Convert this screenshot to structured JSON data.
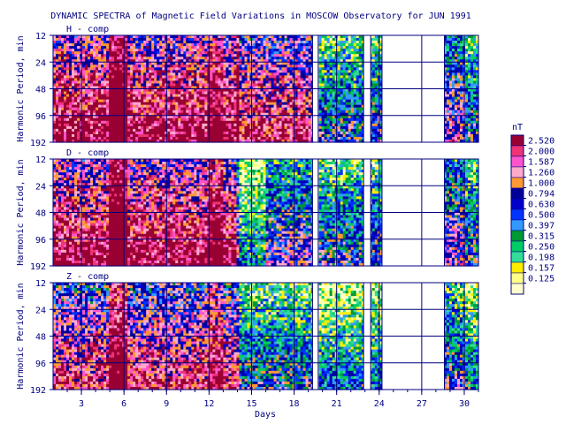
{
  "chart_data": {
    "type": "heatmap",
    "title": "DYNAMIC SPECTRA of Magnetic Field Variations in MOSCOW Observatory for JUN 1991",
    "xlabel": "Days",
    "ylabel": "Harmonic Period, min",
    "x_ticks": [
      "3",
      "6",
      "9",
      "12",
      "15",
      "18",
      "21",
      "24",
      "27",
      "30"
    ],
    "y_ticks": [
      "12",
      "24",
      "48",
      "96",
      "192"
    ],
    "xlim": [
      1,
      31
    ],
    "y_scale": "log2",
    "ylim": [
      12,
      192
    ],
    "panels": [
      {
        "name": "H - comp"
      },
      {
        "name": "D - comp"
      },
      {
        "name": "Z - comp"
      }
    ],
    "data_gaps_days": [
      [
        19.3,
        19.7
      ],
      [
        22.9,
        23.4
      ],
      [
        24.2,
        28.6
      ]
    ],
    "colorbar": {
      "unit": "nT",
      "levels": [
        "2.520",
        "2.000",
        "1.587",
        "1.260",
        "1.000",
        "0.794",
        "0.630",
        "0.500",
        "0.397",
        "0.315",
        "0.250",
        "0.198",
        "0.157",
        "0.125"
      ],
      "colors": [
        "#990033",
        "#ee3377",
        "#ff55cc",
        "#ffaacc",
        "#ff9933",
        "#000099",
        "#0000cc",
        "#0033ff",
        "#3399ff",
        "#009933",
        "#00cc66",
        "#33dd99",
        "#ffee00",
        "#ffff88",
        "#ffffcc"
      ]
    }
  }
}
